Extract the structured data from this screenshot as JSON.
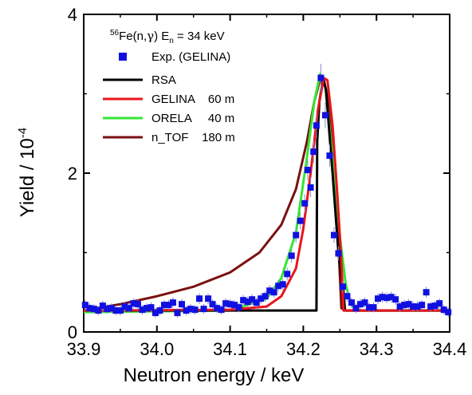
{
  "chart_data": {
    "type": "scatter",
    "xlabel": "Neutron  energy / keV",
    "ylabel": "Yield / 10",
    "ylabel_exponent": "-4",
    "xlim": [
      33.9,
      34.4
    ],
    "ylim": [
      0,
      4
    ],
    "x_ticks": [
      "33.9",
      "34.0",
      "34.1",
      "34.2",
      "34.3",
      "34.4"
    ],
    "y_ticks": [
      "0",
      "2",
      "4"
    ],
    "grid": false,
    "legend_position": "top-left",
    "annotation": {
      "mass": "56",
      "reaction": "Fe(n,",
      "gamma": "γ",
      "reaction_end": ") E",
      "sub": "n",
      "value": " = 34 keV"
    },
    "series": [
      {
        "name": "Exp. (GELINA)",
        "kind": "points",
        "color": "#1010e0",
        "points": [
          [
            33.902,
            0.34
          ],
          [
            33.908,
            0.3
          ],
          [
            33.914,
            0.29
          ],
          [
            33.92,
            0.27
          ],
          [
            33.926,
            0.33
          ],
          [
            33.932,
            0.29
          ],
          [
            33.938,
            0.3
          ],
          [
            33.944,
            0.27
          ],
          [
            33.95,
            0.27
          ],
          [
            33.956,
            0.32
          ],
          [
            33.962,
            0.3
          ],
          [
            33.968,
            0.36
          ],
          [
            33.974,
            0.35
          ],
          [
            33.98,
            0.28
          ],
          [
            33.986,
            0.3
          ],
          [
            33.992,
            0.31
          ],
          [
            33.998,
            0.24
          ],
          [
            34.004,
            0.27
          ],
          [
            34.01,
            0.34
          ],
          [
            34.016,
            0.34
          ],
          [
            34.022,
            0.37
          ],
          [
            34.028,
            0.24
          ],
          [
            34.034,
            0.35
          ],
          [
            34.04,
            0.27
          ],
          [
            34.046,
            0.29
          ],
          [
            34.052,
            0.28
          ],
          [
            34.058,
            0.42
          ],
          [
            34.064,
            0.29
          ],
          [
            34.07,
            0.42
          ],
          [
            34.076,
            0.35
          ],
          [
            34.082,
            0.3
          ],
          [
            34.088,
            0.28
          ],
          [
            34.094,
            0.36
          ],
          [
            34.1,
            0.35
          ],
          [
            34.106,
            0.34
          ],
          [
            34.112,
            0.31
          ],
          [
            34.118,
            0.4
          ],
          [
            34.124,
            0.38
          ],
          [
            34.13,
            0.41
          ],
          [
            34.136,
            0.37
          ],
          [
            34.142,
            0.42
          ],
          [
            34.148,
            0.45
          ],
          [
            34.154,
            0.52
          ],
          [
            34.16,
            0.5
          ],
          [
            34.166,
            0.58
          ],
          [
            34.172,
            0.6
          ],
          [
            34.178,
            0.73
          ],
          [
            34.184,
            0.96
          ],
          [
            34.19,
            1.22
          ],
          [
            34.196,
            1.4
          ],
          [
            34.202,
            1.62
          ],
          [
            34.206,
            2.04
          ],
          [
            34.21,
            1.82
          ],
          [
            34.214,
            2.27
          ],
          [
            34.218,
            2.6
          ],
          [
            34.224,
            3.2
          ],
          [
            34.23,
            2.73
          ],
          [
            34.236,
            2.22
          ],
          [
            34.242,
            1.22
          ],
          [
            34.248,
            0.99
          ],
          [
            34.254,
            0.57
          ],
          [
            34.26,
            0.45
          ],
          [
            34.266,
            0.37
          ],
          [
            34.272,
            0.3
          ],
          [
            34.278,
            0.35
          ],
          [
            34.284,
            0.37
          ],
          [
            34.29,
            0.31
          ],
          [
            34.296,
            0.31
          ],
          [
            34.302,
            0.42
          ],
          [
            34.308,
            0.44
          ],
          [
            34.314,
            0.43
          ],
          [
            34.32,
            0.44
          ],
          [
            34.326,
            0.41
          ],
          [
            34.332,
            0.32
          ],
          [
            34.338,
            0.34
          ],
          [
            34.344,
            0.35
          ],
          [
            34.35,
            0.32
          ],
          [
            34.356,
            0.32
          ],
          [
            34.362,
            0.34
          ],
          [
            34.368,
            0.5
          ],
          [
            34.374,
            0.32
          ],
          [
            34.38,
            0.33
          ],
          [
            34.386,
            0.36
          ],
          [
            34.392,
            0.28
          ],
          [
            34.398,
            0.25
          ]
        ]
      },
      {
        "name": "RSA",
        "kind": "line",
        "color": "#000000",
        "points": [
          [
            33.9,
            0.27
          ],
          [
            34.218,
            0.27
          ],
          [
            34.219,
            2.4
          ],
          [
            34.222,
            2.9
          ],
          [
            34.227,
            3.2
          ],
          [
            34.231,
            3.05
          ],
          [
            34.24,
            2.0
          ],
          [
            34.248,
            1.0
          ],
          [
            34.255,
            0.5
          ],
          [
            34.257,
            0.27
          ],
          [
            34.4,
            0.27
          ]
        ]
      },
      {
        "name": "GELINA    60 m",
        "kind": "line",
        "color": "#e8141c",
        "points": [
          [
            33.9,
            0.27
          ],
          [
            34.1,
            0.28
          ],
          [
            34.15,
            0.32
          ],
          [
            34.17,
            0.45
          ],
          [
            34.19,
            0.8
          ],
          [
            34.2,
            1.3
          ],
          [
            34.21,
            2.0
          ],
          [
            34.22,
            2.8
          ],
          [
            34.228,
            3.2
          ],
          [
            34.233,
            3.17
          ],
          [
            34.24,
            2.6
          ],
          [
            34.246,
            1.8
          ],
          [
            34.252,
            0.9
          ],
          [
            34.255,
            0.27
          ],
          [
            34.4,
            0.27
          ]
        ]
      },
      {
        "name": "ORELA     40 m",
        "kind": "line",
        "color": "#33e633",
        "points": [
          [
            33.9,
            0.25
          ],
          [
            34.1,
            0.27
          ],
          [
            34.15,
            0.42
          ],
          [
            34.17,
            0.68
          ],
          [
            34.19,
            1.25
          ],
          [
            34.205,
            2.2
          ],
          [
            34.215,
            2.9
          ],
          [
            34.223,
            3.25
          ],
          [
            34.23,
            3.1
          ],
          [
            34.24,
            2.2
          ],
          [
            34.25,
            1.2
          ],
          [
            34.258,
            0.6
          ],
          [
            34.265,
            0.35
          ],
          [
            34.272,
            0.27
          ],
          [
            34.4,
            0.27
          ]
        ]
      },
      {
        "name": "n_TOF    180 m",
        "kind": "line",
        "color": "#7a1010",
        "points": [
          [
            33.9,
            0.27
          ],
          [
            33.95,
            0.35
          ],
          [
            34.0,
            0.45
          ],
          [
            34.05,
            0.57
          ],
          [
            34.1,
            0.75
          ],
          [
            34.14,
            1.0
          ],
          [
            34.17,
            1.35
          ],
          [
            34.19,
            1.8
          ],
          [
            34.205,
            2.4
          ],
          [
            34.215,
            2.9
          ],
          [
            34.222,
            3.15
          ],
          [
            34.228,
            3.18
          ],
          [
            34.234,
            2.9
          ],
          [
            34.242,
            2.0
          ],
          [
            34.248,
            1.1
          ],
          [
            34.252,
            0.3
          ],
          [
            34.258,
            0.27
          ],
          [
            34.4,
            0.27
          ]
        ]
      }
    ]
  }
}
